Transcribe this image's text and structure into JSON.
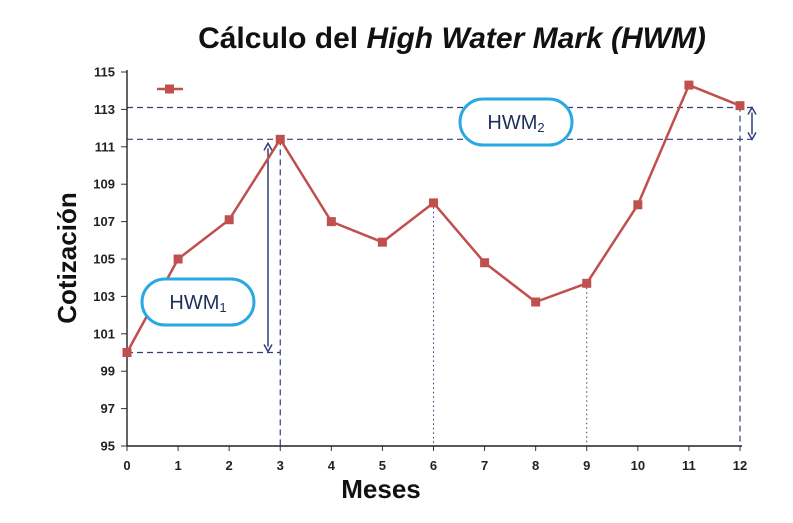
{
  "chart_data": {
    "type": "line",
    "title_plain": "Cálculo del ",
    "title_italic": "High Water Mark (HWM)",
    "xlabel": "Meses",
    "ylabel": "Cotización",
    "x": [
      0,
      1,
      2,
      3,
      4,
      5,
      6,
      7,
      8,
      9,
      10,
      11,
      12
    ],
    "y": [
      100.0,
      105.0,
      107.1,
      111.4,
      107.0,
      105.9,
      108.0,
      104.8,
      102.7,
      103.7,
      107.9,
      114.3,
      113.2
    ],
    "xlim": [
      0,
      12
    ],
    "ylim": [
      95,
      115
    ],
    "yticks": [
      "95",
      "97",
      "99",
      "101",
      "103",
      "105",
      "107",
      "109",
      "111",
      "113",
      "115"
    ],
    "xticks": [
      "0",
      "1",
      "2",
      "3",
      "4",
      "5",
      "6",
      "7",
      "8",
      "9",
      "10",
      "11",
      "12"
    ],
    "grid": false,
    "series_color": "#c0504d",
    "guide_color": "#2e3f7a",
    "badge_color": "#29a9e1",
    "hwm_levels": [
      {
        "main": "HWM",
        "sub": "1",
        "value": 100.0
      },
      {
        "main": "HWM",
        "sub": "2",
        "value": 111.4
      }
    ],
    "reference_lines": {
      "upper": 113.1
    },
    "dotted_guides_at_x": [
      6,
      9
    ]
  }
}
